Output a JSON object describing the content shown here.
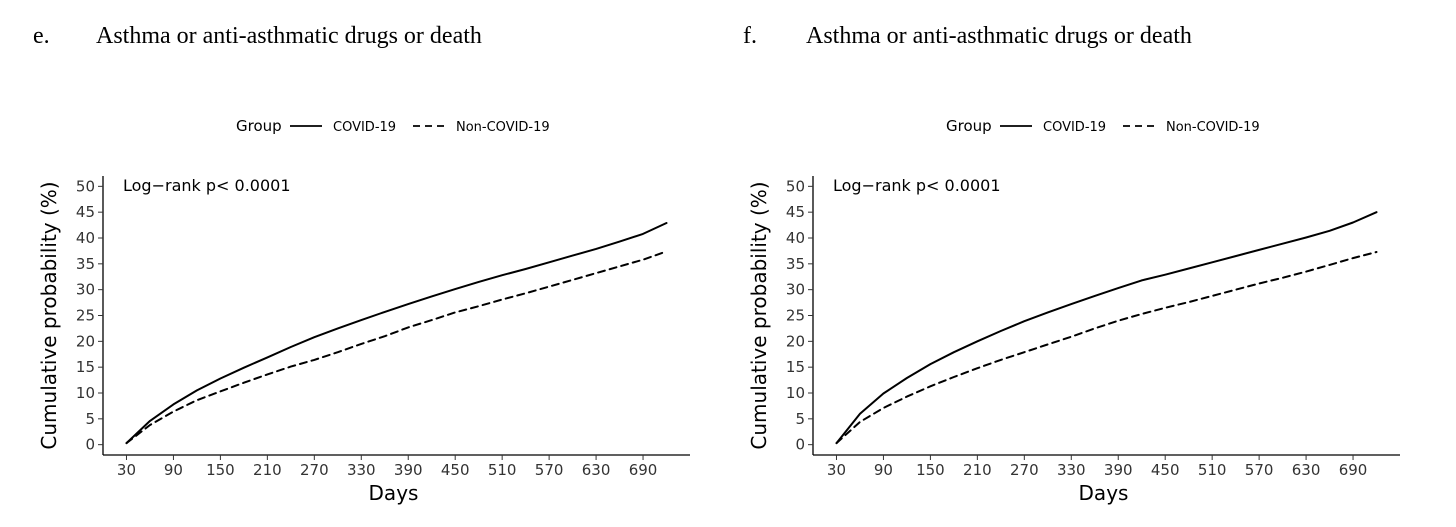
{
  "panels": [
    {
      "letter": "e.",
      "title": "Asthma or anti-asthmatic drugs or death",
      "legend": {
        "title": "Group",
        "entries": [
          "COVID-19",
          "Non-COVID-19"
        ]
      },
      "annotation": "Log−rank p< 0.0001"
    },
    {
      "letter": "f.",
      "title": "Asthma or anti-asthmatic drugs or death",
      "legend": {
        "title": "Group",
        "entries": [
          "COVID-19",
          "Non-COVID-19"
        ]
      },
      "annotation": "Log−rank p< 0.0001"
    }
  ],
  "chart_data": [
    {
      "type": "line",
      "title": "Asthma or anti-asthmatic drugs or death",
      "xlabel": "Days",
      "ylabel": "Cumulative probability (%)",
      "xlim": [
        0,
        750
      ],
      "ylim": [
        -2,
        52
      ],
      "xticks": [
        30,
        90,
        150,
        210,
        270,
        330,
        390,
        450,
        510,
        570,
        630,
        690
      ],
      "yticks": [
        0,
        5,
        10,
        15,
        20,
        25,
        30,
        35,
        40,
        45,
        50
      ],
      "grid": false,
      "legend_position": "top",
      "series": [
        {
          "name": "COVID-19",
          "style": "solid",
          "x": [
            30,
            60,
            90,
            120,
            150,
            180,
            210,
            240,
            270,
            300,
            330,
            360,
            390,
            420,
            450,
            480,
            510,
            540,
            570,
            600,
            630,
            660,
            690,
            720
          ],
          "y": [
            0.3,
            4.6,
            7.8,
            10.5,
            12.8,
            14.9,
            16.9,
            18.9,
            20.8,
            22.5,
            24.1,
            25.7,
            27.2,
            28.7,
            30.1,
            31.5,
            32.8,
            34.0,
            35.3,
            36.6,
            37.9,
            39.3,
            40.8,
            42.9
          ]
        },
        {
          "name": "Non-COVID-19",
          "style": "dashed",
          "x": [
            30,
            60,
            90,
            120,
            150,
            180,
            210,
            240,
            270,
            300,
            330,
            360,
            390,
            420,
            450,
            480,
            510,
            540,
            570,
            600,
            630,
            660,
            690,
            720
          ],
          "y": [
            0.3,
            3.8,
            6.4,
            8.6,
            10.3,
            12.0,
            13.6,
            15.1,
            16.4,
            17.9,
            19.5,
            21.0,
            22.7,
            24.1,
            25.6,
            26.8,
            28.1,
            29.3,
            30.6,
            31.9,
            33.2,
            34.5,
            35.8,
            37.4
          ]
        }
      ]
    },
    {
      "type": "line",
      "title": "Asthma or anti-asthmatic drugs or death",
      "xlabel": "Days",
      "ylabel": "Cumulative probability (%)",
      "xlim": [
        0,
        750
      ],
      "ylim": [
        -2,
        52
      ],
      "xticks": [
        30,
        90,
        150,
        210,
        270,
        330,
        390,
        450,
        510,
        570,
        630,
        690
      ],
      "yticks": [
        0,
        5,
        10,
        15,
        20,
        25,
        30,
        35,
        40,
        45,
        50
      ],
      "grid": false,
      "legend_position": "top",
      "series": [
        {
          "name": "COVID-19",
          "style": "solid",
          "x": [
            30,
            60,
            90,
            120,
            150,
            180,
            210,
            240,
            270,
            300,
            330,
            360,
            390,
            420,
            450,
            480,
            510,
            540,
            570,
            600,
            630,
            660,
            690,
            720
          ],
          "y": [
            0.3,
            6.0,
            9.9,
            12.9,
            15.6,
            17.9,
            20.0,
            22.0,
            23.9,
            25.6,
            27.2,
            28.8,
            30.3,
            31.8,
            32.9,
            34.1,
            35.3,
            36.5,
            37.7,
            38.9,
            40.1,
            41.4,
            43.0,
            45.0
          ]
        },
        {
          "name": "Non-COVID-19",
          "style": "dashed",
          "x": [
            30,
            60,
            90,
            120,
            150,
            180,
            210,
            240,
            270,
            300,
            330,
            360,
            390,
            420,
            450,
            480,
            510,
            540,
            570,
            600,
            630,
            660,
            690,
            720
          ],
          "y": [
            0.3,
            4.4,
            7.1,
            9.3,
            11.3,
            13.1,
            14.8,
            16.4,
            17.9,
            19.4,
            20.9,
            22.5,
            24.0,
            25.3,
            26.5,
            27.6,
            28.8,
            30.0,
            31.2,
            32.3,
            33.5,
            34.8,
            36.1,
            37.3
          ]
        }
      ]
    }
  ]
}
